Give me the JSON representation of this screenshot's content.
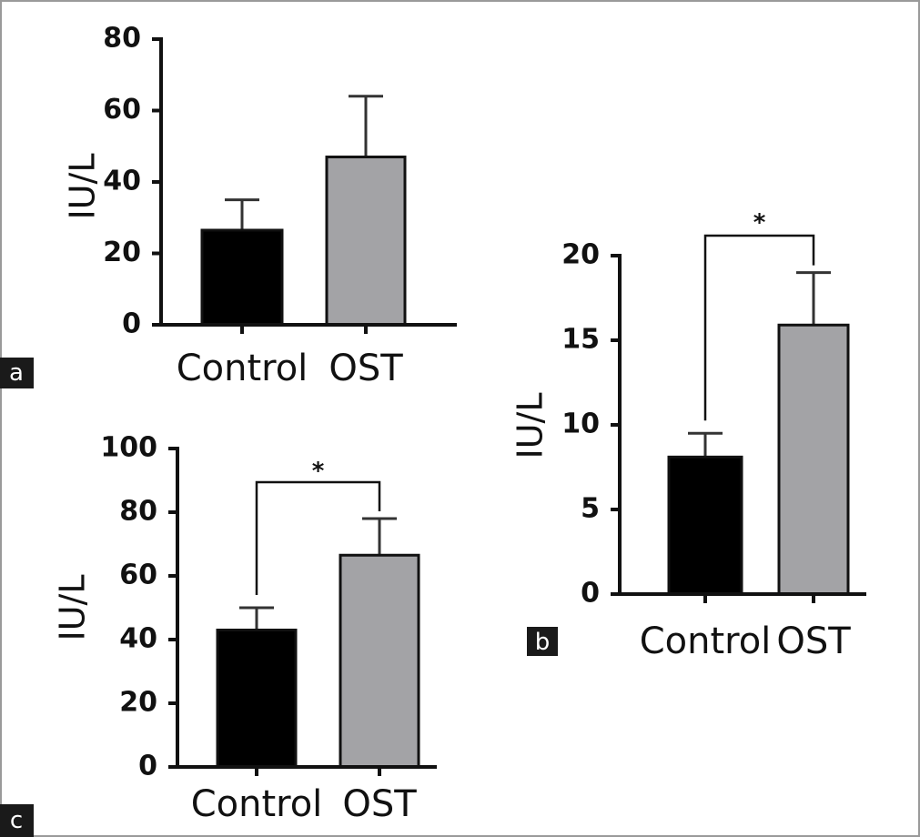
{
  "chart_data": [
    {
      "panel": "a",
      "type": "bar",
      "categories": [
        "Control",
        "OST"
      ],
      "values": [
        26.5,
        47
      ],
      "error": [
        8.5,
        17
      ],
      "bar_colors": [
        "#000000",
        "#a3a3a6"
      ],
      "title": "",
      "xlabel": "",
      "ylabel": "IU/L",
      "ylim": [
        0,
        80
      ],
      "yticks": [
        0,
        20,
        40,
        60,
        80
      ],
      "significance": null,
      "grid": false
    },
    {
      "panel": "b",
      "type": "bar",
      "categories": [
        "Control",
        "OST"
      ],
      "values": [
        8.1,
        15.9
      ],
      "error": [
        1.4,
        3.1
      ],
      "bar_colors": [
        "#000000",
        "#a3a3a6"
      ],
      "title": "",
      "xlabel": "",
      "ylabel": "IU/L",
      "ylim": [
        0,
        20
      ],
      "yticks": [
        0,
        5,
        10,
        15,
        20
      ],
      "significance": {
        "label": "*",
        "from": 0,
        "to": 1
      },
      "grid": false
    },
    {
      "panel": "c",
      "type": "bar",
      "categories": [
        "Control",
        "OST"
      ],
      "values": [
        43,
        66.5
      ],
      "error": [
        7,
        11.5
      ],
      "bar_colors": [
        "#000000",
        "#a3a3a6"
      ],
      "title": "",
      "xlabel": "",
      "ylabel": "IU/L",
      "ylim": [
        0,
        100
      ],
      "yticks": [
        0,
        20,
        40,
        60,
        80,
        100
      ],
      "significance": {
        "label": "*",
        "from": 0,
        "to": 1
      },
      "grid": false
    }
  ]
}
